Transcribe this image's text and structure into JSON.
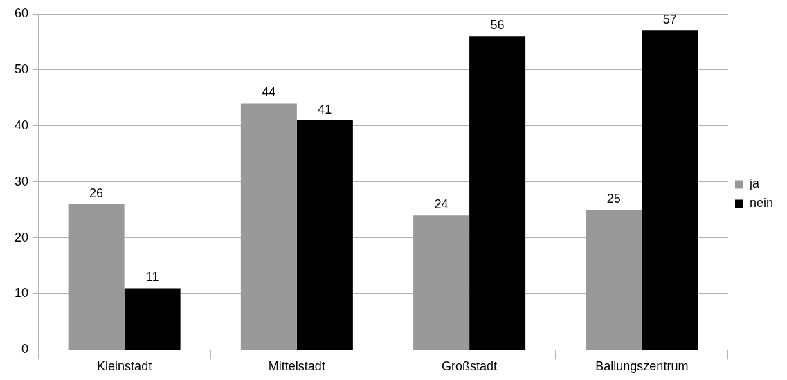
{
  "chart_data": {
    "type": "bar",
    "categories": [
      "Kleinstadt",
      "Mittelstadt",
      "Großstadt",
      "Ballungszentrum"
    ],
    "series": [
      {
        "name": "ja",
        "color": "#999999",
        "values": [
          26,
          44,
          24,
          25
        ]
      },
      {
        "name": "nein",
        "color": "#000000",
        "values": [
          11,
          41,
          56,
          57
        ]
      }
    ],
    "ylim": [
      0,
      60
    ],
    "yticks": [
      0,
      10,
      20,
      30,
      40,
      50,
      60
    ],
    "grid": "y",
    "legend": "right",
    "data_labels": true
  }
}
